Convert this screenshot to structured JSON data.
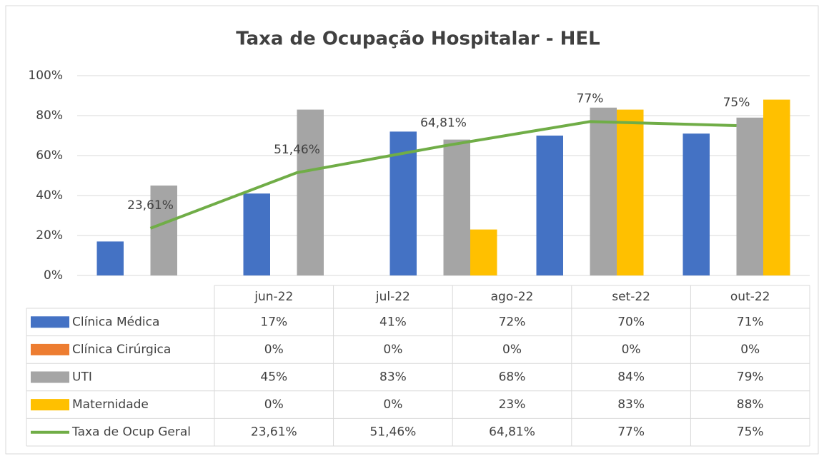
{
  "chart_data": {
    "type": "bar-line-table",
    "title": "Taxa de Ocupação Hospitalar - HEL",
    "categories": [
      "jun-22",
      "jul-22",
      "ago-22",
      "set-22",
      "out-22"
    ],
    "series": [
      {
        "name": "Clínica Médica",
        "type": "bar",
        "color": "#4472c4",
        "values": [
          17,
          41,
          72,
          70,
          71
        ],
        "value_labels": [
          "17%",
          "41%",
          "72%",
          "70%",
          "71%"
        ]
      },
      {
        "name": "Clínica Cirúrgica",
        "type": "bar",
        "color": "#ed7d31",
        "values": [
          0,
          0,
          0,
          0,
          0
        ],
        "value_labels": [
          "0%",
          "0%",
          "0%",
          "0%",
          "0%"
        ]
      },
      {
        "name": "UTI",
        "type": "bar",
        "color": "#a5a5a5",
        "values": [
          45,
          83,
          68,
          84,
          79
        ],
        "value_labels": [
          "45%",
          "83%",
          "68%",
          "84%",
          "79%"
        ]
      },
      {
        "name": "Maternidade",
        "type": "bar",
        "color": "#ffc000",
        "values": [
          0,
          0,
          23,
          83,
          88
        ],
        "value_labels": [
          "0%",
          "0%",
          "23%",
          "83%",
          "88%"
        ]
      },
      {
        "name": "Taxa de Ocup Geral",
        "type": "line",
        "color": "#70ad47",
        "values": [
          23.61,
          51.46,
          64.81,
          77,
          75
        ],
        "value_labels": [
          "23,61%",
          "51,46%",
          "64,81%",
          "77%",
          "75%"
        ]
      }
    ],
    "ylim": [
      0,
      100
    ],
    "yticks": [
      {
        "value": 0,
        "label": "0%"
      },
      {
        "value": 20,
        "label": "20%"
      },
      {
        "value": 40,
        "label": "40%"
      },
      {
        "value": 60,
        "label": "60%"
      },
      {
        "value": 80,
        "label": "80%"
      },
      {
        "value": 100,
        "label": "100%"
      }
    ],
    "grid": true
  }
}
